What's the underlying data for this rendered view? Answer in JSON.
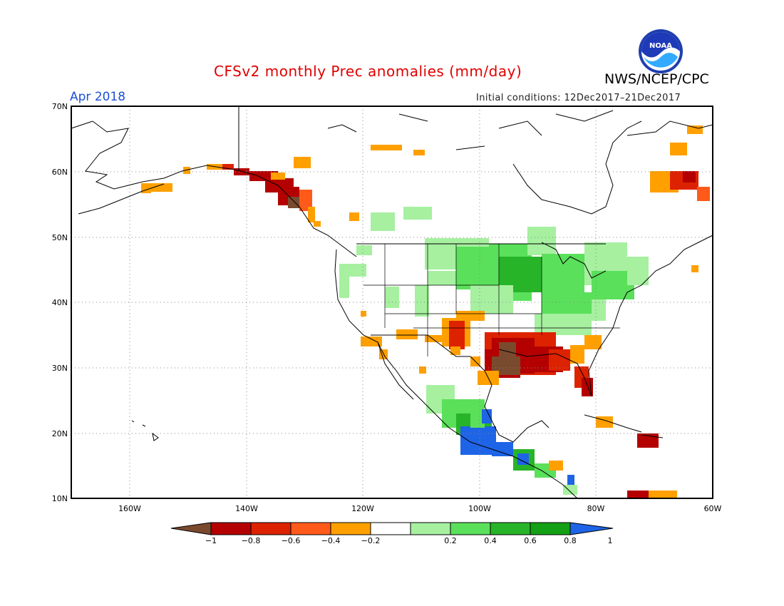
{
  "header": {
    "title": "CFSv2 monthly Prec anomalies (mm/day)",
    "agency": "NWS/NCEP/CPC",
    "logo_text": "NOAA",
    "target_month": "Apr 2018",
    "initial_conditions": "Initial conditions: 12Dec2017–21Dec2017"
  },
  "axes": {
    "lat_labels": [
      "70N",
      "60N",
      "50N",
      "40N",
      "30N",
      "20N",
      "10N"
    ],
    "lon_labels": [
      "160W",
      "140W",
      "120W",
      "100W",
      "80W",
      "60W"
    ]
  },
  "colorbar": {
    "labels": [
      "−1",
      "−0.8",
      "−0.6",
      "−0.4",
      "−0.2",
      "0.2",
      "0.4",
      "0.6",
      "0.8",
      "1"
    ],
    "colors": [
      "#7a4a2e",
      "#b40000",
      "#dd2200",
      "#ff5a1a",
      "#ffa000",
      "#ffffff",
      "#a6f0a0",
      "#5ae05a",
      "#28b428",
      "#14a014",
      "#1e64e6"
    ]
  },
  "colors": {
    "title": "#e00000",
    "month": "#1a4fd8",
    "coast": "#000000",
    "grid": "#888888"
  }
}
